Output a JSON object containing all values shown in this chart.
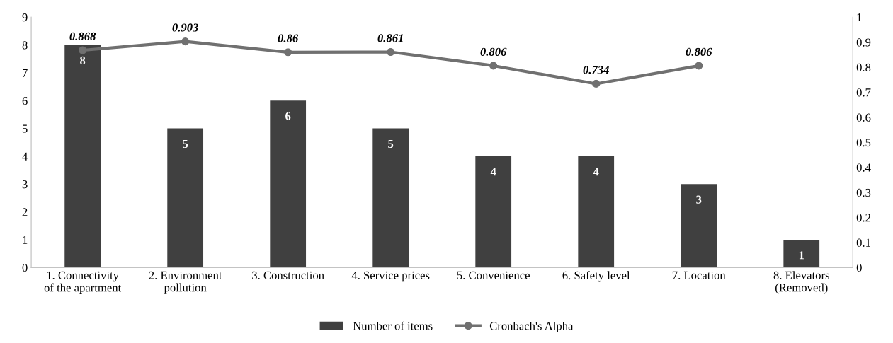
{
  "chart_data": {
    "type": "bar",
    "categories": [
      "1. Connectivity\nof the apartment",
      "2. Environment\npollution",
      "3. Construction",
      "4. Service prices",
      "5. Convenience",
      "6. Safety level",
      "7. Location",
      "8. Elevators\n(Removed)"
    ],
    "series": [
      {
        "name": "Number of items",
        "color": "#404040",
        "values": [
          8,
          5,
          6,
          5,
          4,
          4,
          3,
          1
        ]
      },
      {
        "name": "Cronbach's Alpha",
        "type": "line",
        "axis": "y2",
        "color": "#707070",
        "values": [
          0.868,
          0.903,
          0.86,
          0.861,
          0.806,
          0.734,
          0.806,
          null
        ]
      }
    ],
    "ylim": [
      0,
      9
    ],
    "yticks": [
      0,
      1,
      2,
      3,
      4,
      5,
      6,
      7,
      8,
      9
    ],
    "y2lim": [
      0,
      1
    ],
    "y2ticks": [
      0,
      0.1,
      0.2,
      0.3,
      0.4,
      0.5,
      0.6,
      0.7,
      0.8,
      0.9,
      1
    ],
    "data_labels": true,
    "legend": "bottom",
    "grid": false,
    "marker": "circle",
    "line_style": "solid"
  }
}
